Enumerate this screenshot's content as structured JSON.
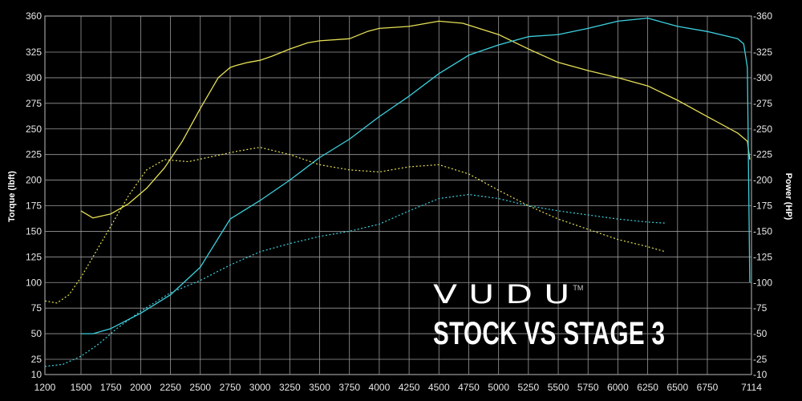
{
  "chart_data": {
    "type": "line",
    "xlabel": "",
    "ylabel": "Torque (lbft)",
    "y2label": "Power (HP)",
    "xlim": [
      1200,
      7114
    ],
    "ylim": [
      10,
      360
    ],
    "x_ticks": [
      1200,
      1500,
      1750,
      2000,
      2250,
      2500,
      2750,
      3000,
      3250,
      3500,
      3750,
      4000,
      4250,
      4500,
      4750,
      5000,
      5250,
      5500,
      5750,
      6000,
      6250,
      6500,
      6750,
      7114
    ],
    "y_ticks": [
      10,
      25,
      50,
      75,
      100,
      125,
      150,
      175,
      200,
      225,
      250,
      275,
      300,
      325,
      360
    ],
    "grid": true,
    "series": [
      {
        "color": "#e6e055",
        "style": "solid",
        "x": [
          1500,
          1600,
          1750,
          1900,
          2050,
          2200,
          2350,
          2500,
          2650,
          2750,
          2800,
          2900,
          3000,
          3100,
          3250,
          3400,
          3500,
          3750,
          3900,
          4000,
          4250,
          4500,
          4700,
          5000,
          5250,
          5500,
          5750,
          6000,
          6250,
          6500,
          6750,
          7000,
          7080,
          7100
        ],
        "y": [
          170,
          163,
          167,
          177,
          192,
          212,
          238,
          270,
          300,
          310,
          312,
          315,
          317,
          321,
          328,
          334,
          336,
          338,
          345,
          348,
          350,
          355,
          353,
          342,
          328,
          315,
          307,
          300,
          292,
          278,
          262,
          246,
          238,
          220
        ]
      },
      {
        "color": "#3dd0de",
        "style": "solid",
        "x": [
          1500,
          1600,
          1750,
          2000,
          2250,
          2500,
          2750,
          3000,
          3250,
          3500,
          3750,
          4000,
          4250,
          4500,
          4750,
          5000,
          5250,
          5500,
          5750,
          6000,
          6250,
          6500,
          6750,
          7000,
          7050,
          7080,
          7100
        ],
        "y": [
          50,
          50,
          55,
          70,
          88,
          115,
          162,
          180,
          200,
          222,
          240,
          262,
          282,
          304,
          322,
          332,
          340,
          342,
          348,
          355,
          358,
          350,
          345,
          338,
          333,
          310,
          100
        ]
      },
      {
        "color": "#e6e055",
        "style": "dotted",
        "x": [
          1200,
          1300,
          1400,
          1500,
          1600,
          1750,
          1900,
          2050,
          2200,
          2400,
          2600,
          2800,
          3000,
          3250,
          3500,
          3750,
          4000,
          4250,
          4500,
          4750,
          5000,
          5250,
          5500,
          5750,
          6000,
          6250,
          6400
        ],
        "y": [
          82,
          80,
          88,
          105,
          125,
          155,
          185,
          210,
          220,
          218,
          223,
          228,
          232,
          225,
          215,
          210,
          208,
          213,
          215,
          206,
          190,
          175,
          162,
          152,
          142,
          135,
          130
        ]
      },
      {
        "color": "#3dd0de",
        "style": "dotted",
        "x": [
          1200,
          1350,
          1500,
          1650,
          1800,
          2000,
          2250,
          2500,
          2750,
          3000,
          3250,
          3500,
          3750,
          4000,
          4250,
          4500,
          4750,
          5000,
          5250,
          5500,
          5750,
          6000,
          6250,
          6400
        ],
        "y": [
          18,
          20,
          28,
          40,
          55,
          72,
          90,
          102,
          117,
          130,
          138,
          145,
          150,
          157,
          170,
          182,
          186,
          182,
          175,
          170,
          166,
          162,
          159,
          158
        ]
      }
    ]
  },
  "branding": {
    "logo": "VUDU",
    "trademark": "TM",
    "subtitle": "STOCK VS STAGE 3"
  }
}
